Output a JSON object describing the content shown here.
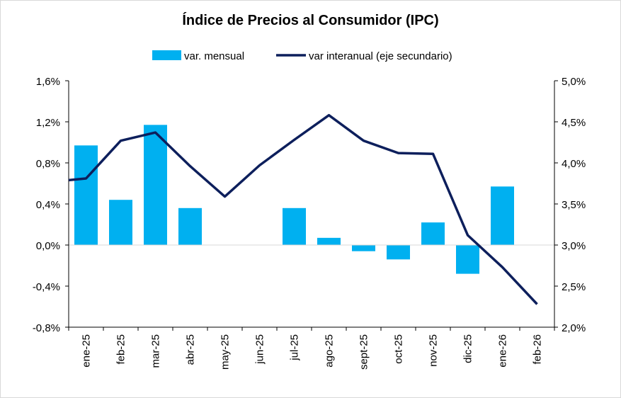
{
  "chart_data": {
    "type": "bar",
    "title": "Índice de Precios al Consumidor  (IPC)",
    "categories": [
      "ene-25",
      "feb-25",
      "mar-25",
      "abr-25",
      "may-25",
      "jun-25",
      "jul-25",
      "ago-25",
      "sept-25",
      "oct-25",
      "nov-25",
      "dic-25",
      "ene-26",
      "feb-26"
    ],
    "series": [
      {
        "name": "var. mensual",
        "kind": "bar",
        "axis": "primary",
        "color": "#00b0f0",
        "values": [
          0.97,
          0.44,
          1.17,
          0.36,
          0.0,
          0.0,
          0.36,
          0.07,
          -0.06,
          -0.14,
          0.22,
          -0.28,
          0.57,
          null
        ]
      },
      {
        "name": "var interanual (eje secundario)",
        "kind": "line",
        "axis": "secondary",
        "color": "#0d1f5c",
        "values": [
          3.81,
          4.27,
          4.37,
          3.96,
          3.59,
          3.97,
          4.28,
          4.58,
          4.27,
          4.12,
          4.11,
          3.12,
          2.73,
          2.28
        ],
        "start_value": 3.79
      }
    ],
    "y_primary": {
      "ylim": [
        -0.8,
        1.6
      ],
      "ticks": [
        -0.8,
        -0.4,
        0.0,
        0.4,
        0.8,
        1.2,
        1.6
      ],
      "tick_labels": [
        "-0,8%",
        "-0,4%",
        "0,0%",
        "0,4%",
        "0,8%",
        "1,2%",
        "1,6%"
      ]
    },
    "y_secondary": {
      "ylim": [
        2.0,
        5.0
      ],
      "ticks": [
        2.0,
        2.5,
        3.0,
        3.5,
        4.0,
        4.5,
        5.0
      ],
      "tick_labels": [
        "2,0%",
        "2,5%",
        "3,0%",
        "3,5%",
        "4,0%",
        "4,5%",
        "5,0%"
      ]
    },
    "legend_placement": "top-center",
    "grid": false
  }
}
